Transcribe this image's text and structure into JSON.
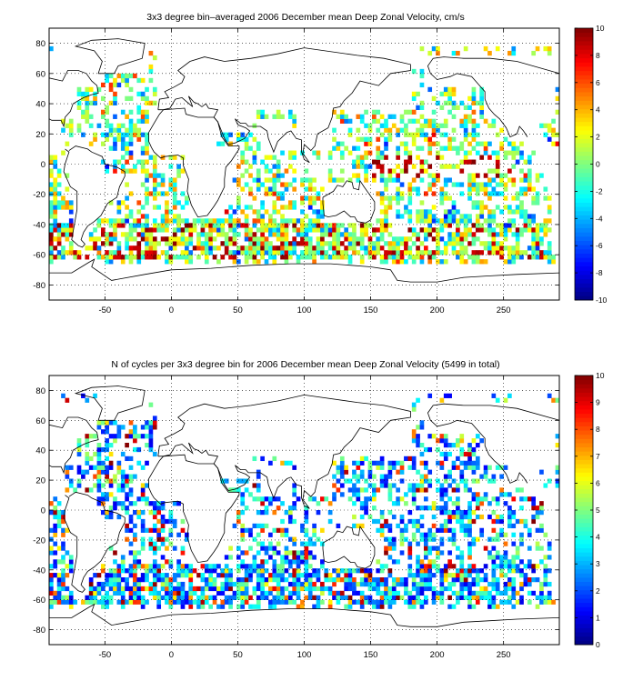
{
  "chart_data": [
    {
      "type": "heatmap",
      "title": "3x3 degree bin–averaged 2006 December mean Deep Zonal Velocity, cm/s",
      "xlim": [
        -92,
        292
      ],
      "ylim": [
        -90,
        90
      ],
      "x_ticks": [
        "-50",
        "0",
        "50",
        "100",
        "150",
        "200",
        "250"
      ],
      "x_tick_values": [
        -50,
        0,
        50,
        100,
        150,
        200,
        250
      ],
      "y_ticks": [
        "80",
        "60",
        "40",
        "20",
        "0",
        "-20",
        "-40",
        "-60",
        "-80"
      ],
      "y_tick_values": [
        80,
        60,
        40,
        20,
        0,
        -20,
        -40,
        -60,
        -80
      ],
      "grid": true,
      "colormap": "jet",
      "colorbar": {
        "min": -10,
        "max": 10,
        "ticks": [
          "10",
          "8",
          "6",
          "4",
          "2",
          "0",
          "-2",
          "-4",
          "-6",
          "-8",
          "-10"
        ],
        "tick_values": [
          10,
          8,
          6,
          4,
          2,
          0,
          -2,
          -4,
          -6,
          -8,
          -10
        ]
      },
      "bin_size_deg": 3
    },
    {
      "type": "heatmap",
      "title": "N of cycles per 3x3 degree bin for 2006 December mean Deep Zonal Velocity (5499 in total)",
      "xlim": [
        -92,
        292
      ],
      "ylim": [
        -90,
        90
      ],
      "x_ticks": [
        "-50",
        "0",
        "50",
        "100",
        "150",
        "200",
        "250"
      ],
      "x_tick_values": [
        -50,
        0,
        50,
        100,
        150,
        200,
        250
      ],
      "y_ticks": [
        "80",
        "60",
        "40",
        "20",
        "0",
        "-20",
        "-40",
        "-60",
        "-80"
      ],
      "y_tick_values": [
        80,
        60,
        40,
        20,
        0,
        -20,
        -40,
        -60,
        -80
      ],
      "grid": true,
      "colormap": "jet",
      "colorbar": {
        "min": 0,
        "max": 10,
        "ticks": [
          "10",
          "9",
          "8",
          "7",
          "6",
          "5",
          "4",
          "3",
          "2",
          "1",
          "0"
        ],
        "tick_values": [
          10,
          9,
          8,
          7,
          6,
          5,
          4,
          3,
          2,
          1,
          0
        ]
      },
      "bin_size_deg": 3
    }
  ]
}
